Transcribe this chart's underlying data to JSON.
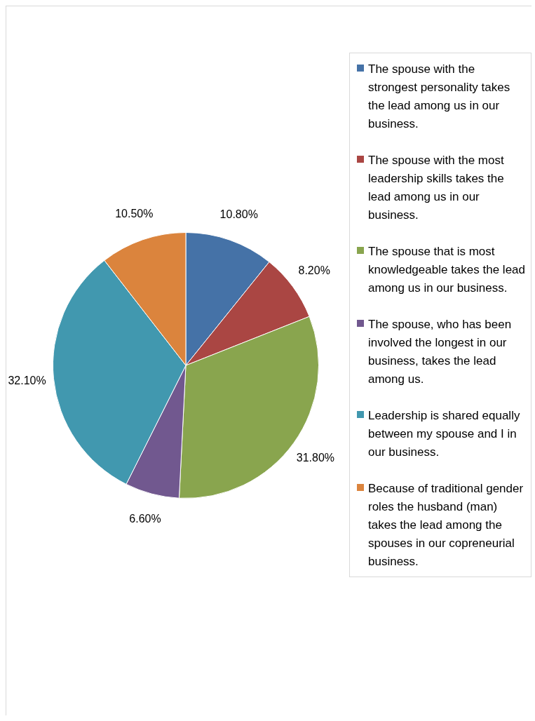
{
  "chart_data": {
    "type": "pie",
    "categories": [
      "The spouse with the strongest personality takes the lead among us in our business.",
      "The spouse with the most leadership skills takes the lead among us in our business.",
      "The spouse that is most knowledgeable takes the lead among us in our business.",
      "The spouse, who has been involved the longest in our business, takes the lead among us.",
      "Leadership is shared equally between my spouse and I in our business.",
      "Because of traditional gender roles the husband (man) takes the lead among the spouses in our copreneurial business."
    ],
    "values": [
      10.8,
      8.2,
      31.8,
      6.6,
      32.1,
      10.5
    ],
    "colors": [
      "#4572a7",
      "#aa4643",
      "#89a54e",
      "#71588f",
      "#4198af",
      "#db843d"
    ],
    "value_labels": [
      "10.80%",
      "8.20%",
      "31.80%",
      "6.60%",
      "32.10%",
      "10.50%"
    ],
    "legend": "right"
  }
}
